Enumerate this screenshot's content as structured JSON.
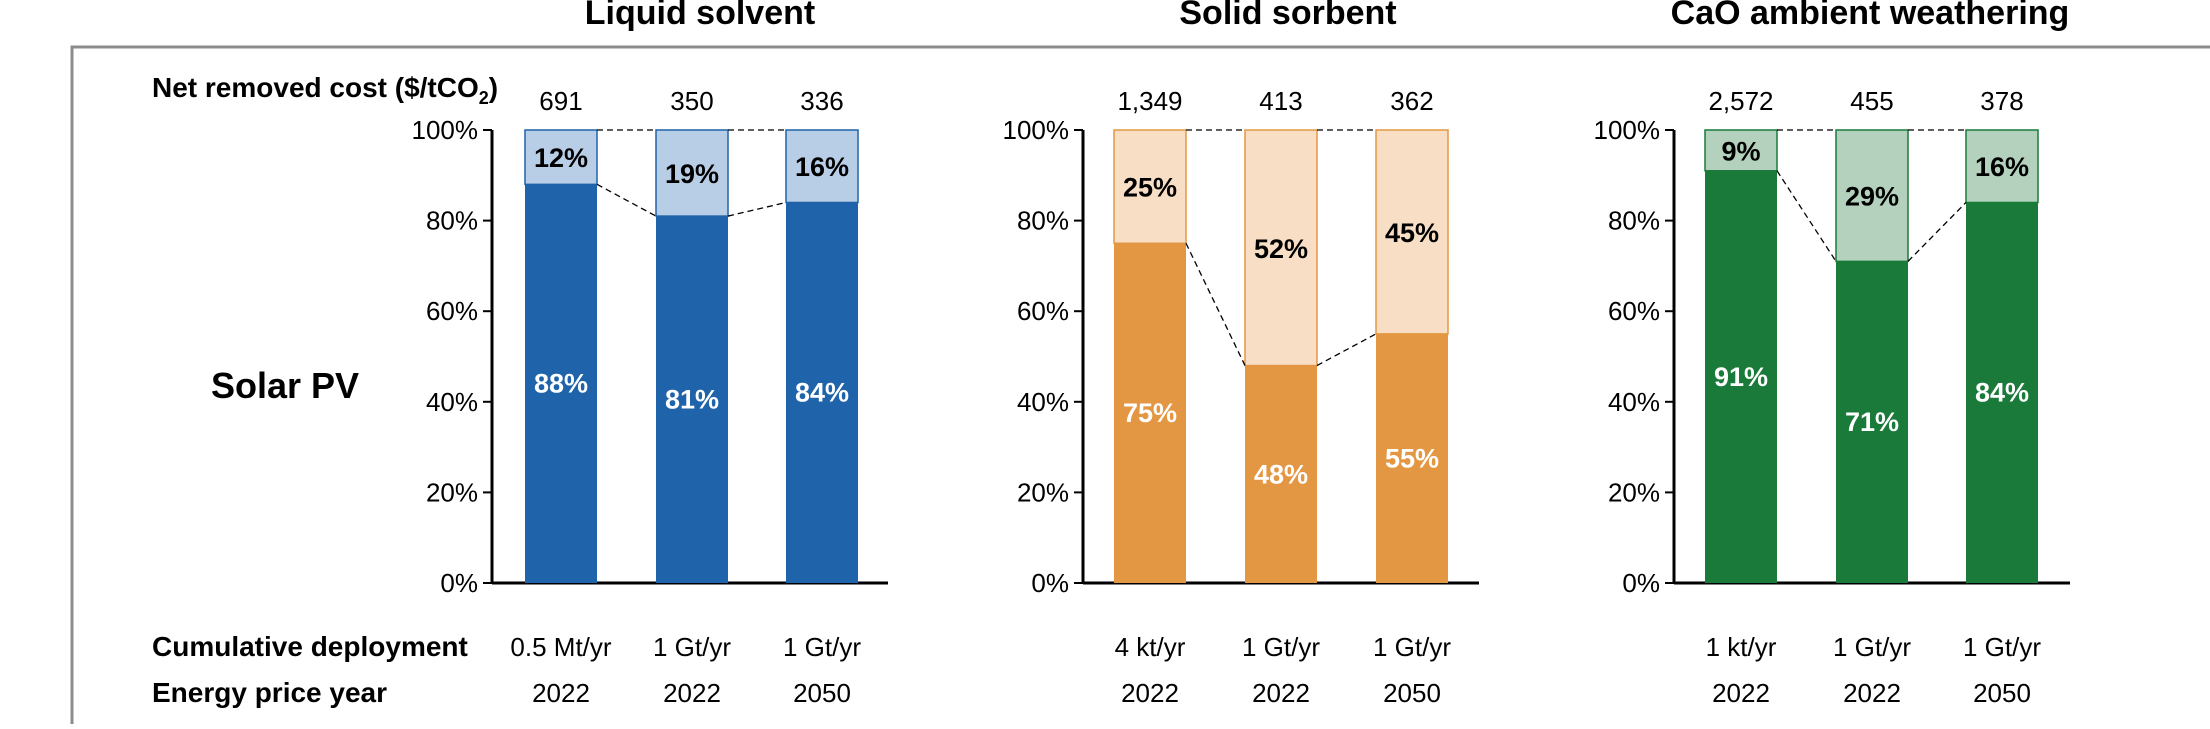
{
  "labels": {
    "net_cost": "Net removed cost ($/tCO",
    "net_cost_sub": "2",
    "net_cost_end": ")",
    "row_title": "Solar PV",
    "cumulative": "Cumulative deployment",
    "energy_year": "Energy price year"
  },
  "chart_data": [
    {
      "type": "bar",
      "stacked": true,
      "title": "Liquid solvent",
      "ylim": [
        0,
        100
      ],
      "yticks": [
        "0%",
        "20%",
        "40%",
        "60%",
        "80%",
        "100%"
      ],
      "net_removed_cost": [
        "691",
        "350",
        "336"
      ],
      "cumulative_deployment": [
        "0.5 Mt/yr",
        "1 Gt/yr",
        "1 Gt/yr"
      ],
      "energy_price_year": [
        "2022",
        "2022",
        "2050"
      ],
      "series": [
        {
          "name": "lower",
          "values": [
            88,
            81,
            84
          ],
          "labels": [
            "88%",
            "81%",
            "84%"
          ],
          "color": "#1f63aa",
          "label_color": "#ffffff"
        },
        {
          "name": "upper",
          "values": [
            12,
            19,
            16
          ],
          "labels": [
            "12%",
            "19%",
            "16%"
          ],
          "color": "#b8cde6",
          "label_color": "#000000"
        }
      ],
      "edge_color": "#1f63aa"
    },
    {
      "type": "bar",
      "stacked": true,
      "title": "Solid sorbent",
      "ylim": [
        0,
        100
      ],
      "yticks": [
        "0%",
        "20%",
        "40%",
        "60%",
        "80%",
        "100%"
      ],
      "net_removed_cost": [
        "1,349",
        "413",
        "362"
      ],
      "cumulative_deployment": [
        "4 kt/yr",
        "1 Gt/yr",
        "1 Gt/yr"
      ],
      "energy_price_year": [
        "2022",
        "2022",
        "2050"
      ],
      "series": [
        {
          "name": "lower",
          "values": [
            75,
            48,
            55
          ],
          "labels": [
            "75%",
            "48%",
            "55%"
          ],
          "color": "#e49743",
          "label_color": "#ffffff"
        },
        {
          "name": "upper",
          "values": [
            25,
            52,
            45
          ],
          "labels": [
            "25%",
            "52%",
            "45%"
          ],
          "color": "#f7dec5",
          "label_color": "#000000"
        }
      ],
      "edge_color": "#e49743"
    },
    {
      "type": "bar",
      "stacked": true,
      "title": "CaO ambient weathering",
      "ylim": [
        0,
        100
      ],
      "yticks": [
        "0%",
        "20%",
        "40%",
        "60%",
        "80%",
        "100%"
      ],
      "net_removed_cost": [
        "2,572",
        "455",
        "378"
      ],
      "cumulative_deployment": [
        "1 kt/yr",
        "1 Gt/yr",
        "1 Gt/yr"
      ],
      "energy_price_year": [
        "2022",
        "2022",
        "2050"
      ],
      "series": [
        {
          "name": "lower",
          "values": [
            91,
            71,
            84
          ],
          "labels": [
            "91%",
            "71%",
            "84%"
          ],
          "color": "#1a7a39",
          "label_color": "#ffffff"
        },
        {
          "name": "upper",
          "values": [
            9,
            29,
            16
          ],
          "labels": [
            "9%",
            "29%",
            "16%"
          ],
          "color": "#b3d1bc",
          "label_color": "#000000"
        }
      ],
      "edge_color": "#1a7a39"
    }
  ]
}
